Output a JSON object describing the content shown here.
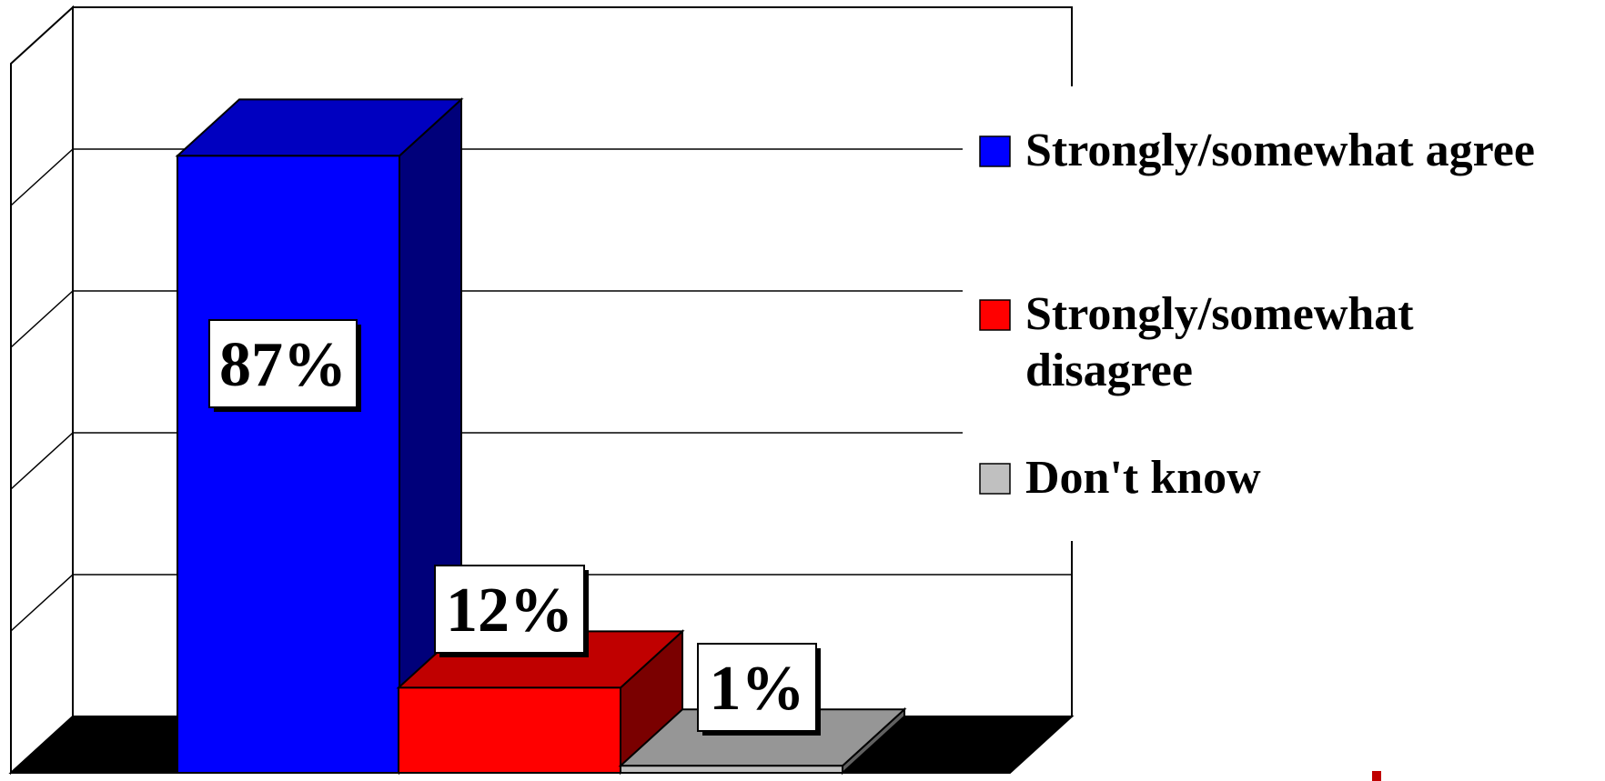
{
  "chart_data": {
    "type": "bar",
    "three_d": true,
    "categories": [
      "Strongly/somewhat agree",
      "Strongly/somewhat disagree",
      "Don't know"
    ],
    "values": [
      87,
      12,
      1
    ],
    "data_labels": [
      "87%",
      "12%",
      "1%"
    ],
    "ylim": [
      0,
      100
    ],
    "grid": true,
    "legend": "right",
    "legend_entries": [
      {
        "lines": [
          "Strongly/somewhat agree"
        ],
        "color": "#0000FF"
      },
      {
        "lines": [
          "Strongly/somewhat",
          "disagree"
        ],
        "color": "#FF0000"
      },
      {
        "lines": [
          "Don't know"
        ],
        "color": "#C0C0C0"
      }
    ],
    "colors": {
      "series": [
        "#0000FF",
        "#FF0000",
        "#C0C0C0"
      ],
      "series_side": [
        "#00007A",
        "#7A0000",
        "#606060"
      ],
      "series_top": [
        "#0000C0",
        "#C00000",
        "#969696"
      ],
      "floor": "#000000",
      "accent": "#C00000"
    }
  }
}
